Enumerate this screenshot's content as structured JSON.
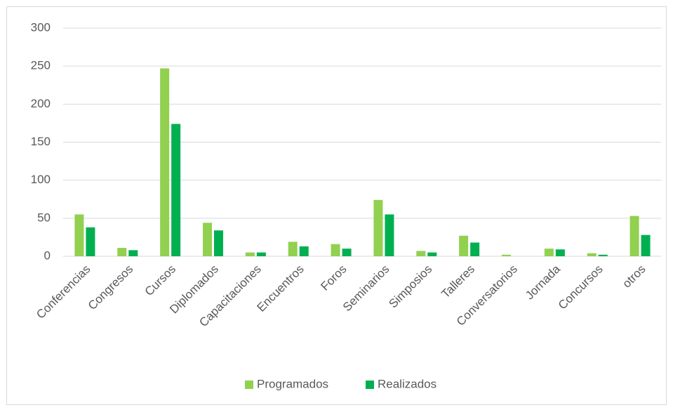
{
  "chart_data": {
    "type": "bar",
    "categories": [
      "Conferencias",
      "Congresos",
      "Cursos",
      "Diplomados",
      "Capacitaciones",
      "Encuentros",
      "Foros",
      "Seminarios",
      "Simposios",
      "Talleres",
      "Conversatorios",
      "Jornada",
      "Concursos",
      "otros"
    ],
    "series": [
      {
        "name": "Programados",
        "color": "#92d050",
        "values": [
          55,
          11,
          247,
          44,
          5,
          19,
          16,
          74,
          7,
          27,
          2,
          10,
          4,
          53
        ]
      },
      {
        "name": "Realizados",
        "color": "#00b050",
        "values": [
          38,
          8,
          174,
          34,
          5,
          13,
          10,
          55,
          5,
          18,
          0,
          9,
          2,
          28
        ]
      }
    ],
    "ylim": [
      0,
      300
    ],
    "yticks": [
      0,
      50,
      100,
      150,
      200,
      250,
      300
    ],
    "grid": true,
    "legend": "bottom"
  }
}
